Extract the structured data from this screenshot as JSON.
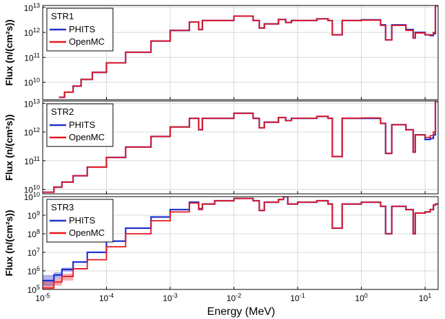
{
  "figure": {
    "xlabel": "Energy (MeV)",
    "colors": {
      "phits": "#1f2fd0",
      "openmc": "#e8141b",
      "grid": "#d8d8d8",
      "frame": "#000000"
    }
  },
  "chart_data": [
    {
      "type": "line",
      "panel_label": "STR1",
      "ylabel": "Flux (n/(cm²s))",
      "xscale": "log",
      "yscale": "log",
      "xlim": [
        1e-05,
        16
      ],
      "ylim": [
        2000000000.0,
        12000000000000.0
      ],
      "grid": true,
      "legend_position": "top-left",
      "x_ticks": [
        {
          "value": 1e-05,
          "base": "10",
          "exp": "-5"
        },
        {
          "value": 0.0001,
          "base": "10",
          "exp": "-4"
        },
        {
          "value": 0.001,
          "base": "10",
          "exp": "-3"
        },
        {
          "value": 0.01,
          "base": "10",
          "exp": "-2"
        },
        {
          "value": 0.1,
          "base": "10",
          "exp": "-1"
        },
        {
          "value": 1,
          "base": "10",
          "exp": "0"
        },
        {
          "value": 10,
          "base": "10",
          "exp": "1"
        }
      ],
      "y_ticks": [
        {
          "value": 10000000000.0,
          "base": "10",
          "exp": "10"
        },
        {
          "value": 100000000000.0,
          "base": "10",
          "exp": "11"
        },
        {
          "value": 1000000000000.0,
          "base": "10",
          "exp": "12"
        },
        {
          "value": 10000000000000.0,
          "base": "10",
          "exp": "13"
        }
      ],
      "series": [
        {
          "name": "PHITS",
          "color": "#1f2fd0",
          "x": [
            1.8e-05,
            2.2e-05,
            3e-05,
            4e-05,
            6e-05,
            0.0001,
            0.0002,
            0.0005,
            0.001,
            0.002,
            0.0028,
            0.0032,
            0.005,
            0.01,
            0.02,
            0.025,
            0.03,
            0.05,
            0.065,
            0.08,
            0.1,
            0.2,
            0.3,
            0.35,
            0.5,
            1,
            2,
            2.4,
            3,
            5,
            6.5,
            7,
            10,
            12,
            13.5,
            14.5
          ],
          "y": [
            2500000000.0,
            4000000000.0,
            7000000000.0,
            13000000000.0,
            25000000000.0,
            60000000000.0,
            160000000000.0,
            450000000000.0,
            1200000000000.0,
            2600000000000.0,
            1300000000000.0,
            3000000000000.0,
            3000000000000.0,
            4500000000000.0,
            3000000000000.0,
            1500000000000.0,
            2200000000000.0,
            3300000000000.0,
            2500000000000.0,
            3000000000000.0,
            3000000000000.0,
            3500000000000.0,
            3000000000000.0,
            800000000000.0,
            3000000000000.0,
            3200000000000.0,
            2000000000000.0,
            500000000000.0,
            2000000000000.0,
            1300000000000.0,
            600000000000.0,
            1000000000000.0,
            800000000000.0,
            750000000000.0,
            900000000000.0,
            12000000000000.0
          ]
        },
        {
          "name": "OpenMC",
          "color": "#e8141b",
          "x": [
            1.8e-05,
            2.2e-05,
            3e-05,
            4e-05,
            6e-05,
            0.0001,
            0.0002,
            0.0005,
            0.001,
            0.002,
            0.0028,
            0.0032,
            0.005,
            0.01,
            0.02,
            0.025,
            0.03,
            0.05,
            0.065,
            0.08,
            0.1,
            0.2,
            0.3,
            0.35,
            0.5,
            1,
            2,
            2.4,
            3,
            5,
            6.5,
            7,
            10,
            12,
            13.5,
            14.5
          ],
          "y": [
            2500000000.0,
            4000000000.0,
            7000000000.0,
            13000000000.0,
            25000000000.0,
            60000000000.0,
            160000000000.0,
            450000000000.0,
            1200000000000.0,
            2600000000000.0,
            1300000000000.0,
            3000000000000.0,
            3000000000000.0,
            4500000000000.0,
            3000000000000.0,
            1500000000000.0,
            2200000000000.0,
            3300000000000.0,
            2500000000000.0,
            3000000000000.0,
            3000000000000.0,
            3500000000000.0,
            3000000000000.0,
            800000000000.0,
            3000000000000.0,
            3100000000000.0,
            1900000000000.0,
            500000000000.0,
            1900000000000.0,
            1200000000000.0,
            600000000000.0,
            950000000000.0,
            800000000000.0,
            800000000000.0,
            1000000000000.0,
            12000000000000.0
          ]
        }
      ]
    },
    {
      "type": "line",
      "panel_label": "STR2",
      "ylabel": "Flux (n/(cm²s))",
      "xscale": "log",
      "yscale": "log",
      "xlim": [
        1e-05,
        16
      ],
      "ylim": [
        7000000000.0,
        12000000000000.0
      ],
      "grid": true,
      "legend_position": "top-left",
      "x_ticks": [
        {
          "value": 1e-05,
          "base": "10",
          "exp": "-5"
        },
        {
          "value": 0.0001,
          "base": "10",
          "exp": "-4"
        },
        {
          "value": 0.001,
          "base": "10",
          "exp": "-3"
        },
        {
          "value": 0.01,
          "base": "10",
          "exp": "-2"
        },
        {
          "value": 0.1,
          "base": "10",
          "exp": "-1"
        },
        {
          "value": 1,
          "base": "10",
          "exp": "0"
        },
        {
          "value": 10,
          "base": "10",
          "exp": "1"
        }
      ],
      "y_ticks": [
        {
          "value": 10000000000.0,
          "base": "10",
          "exp": "10"
        },
        {
          "value": 100000000000.0,
          "base": "10",
          "exp": "11"
        },
        {
          "value": 1000000000000.0,
          "base": "10",
          "exp": "12"
        },
        {
          "value": 10000000000000.0,
          "base": "10",
          "exp": "13"
        }
      ],
      "series": [
        {
          "name": "PHITS",
          "color": "#1f2fd0",
          "x": [
            1e-05,
            1.5e-05,
            2e-05,
            3e-05,
            5e-05,
            0.0001,
            0.0002,
            0.0005,
            0.001,
            0.002,
            0.0028,
            0.0032,
            0.005,
            0.01,
            0.02,
            0.025,
            0.03,
            0.05,
            0.065,
            0.08,
            0.1,
            0.2,
            0.3,
            0.35,
            0.5,
            1,
            2,
            2.4,
            3,
            5,
            6.5,
            7,
            10,
            12,
            13.5,
            14.5
          ],
          "y": [
            8000000000.0,
            12000000000.0,
            18000000000.0,
            30000000000.0,
            60000000000.0,
            130000000000.0,
            300000000000.0,
            700000000000.0,
            1500000000000.0,
            3000000000000.0,
            1200000000000.0,
            3000000000000.0,
            3000000000000.0,
            4500000000000.0,
            3000000000000.0,
            1400000000000.0,
            2200000000000.0,
            3200000000000.0,
            2500000000000.0,
            3000000000000.0,
            3000000000000.0,
            3500000000000.0,
            3000000000000.0,
            140000000000.0,
            3000000000000.0,
            3000000000000.0,
            2000000000000.0,
            180000000000.0,
            1800000000000.0,
            1200000000000.0,
            200000000000.0,
            800000000000.0,
            550000000000.0,
            600000000000.0,
            800000000000.0,
            12000000000000.0
          ]
        },
        {
          "name": "OpenMC",
          "color": "#e8141b",
          "x": [
            1e-05,
            1.5e-05,
            2e-05,
            3e-05,
            5e-05,
            0.0001,
            0.0002,
            0.0005,
            0.001,
            0.002,
            0.0028,
            0.0032,
            0.005,
            0.01,
            0.02,
            0.025,
            0.03,
            0.05,
            0.065,
            0.08,
            0.1,
            0.2,
            0.3,
            0.35,
            0.5,
            1,
            2,
            2.4,
            3,
            5,
            6.5,
            7,
            10,
            12,
            13.5,
            14.5
          ],
          "y": [
            8000000000.0,
            12000000000.0,
            18000000000.0,
            30000000000.0,
            60000000000.0,
            130000000000.0,
            300000000000.0,
            700000000000.0,
            1500000000000.0,
            3000000000000.0,
            1200000000000.0,
            3000000000000.0,
            3000000000000.0,
            4500000000000.0,
            3000000000000.0,
            1400000000000.0,
            2200000000000.0,
            3200000000000.0,
            2500000000000.0,
            3000000000000.0,
            3000000000000.0,
            3500000000000.0,
            3000000000000.0,
            140000000000.0,
            3000000000000.0,
            3100000000000.0,
            2000000000000.0,
            180000000000.0,
            1800000000000.0,
            1200000000000.0,
            200000000000.0,
            800000000000.0,
            650000000000.0,
            750000000000.0,
            1000000000000.0,
            12000000000000.0
          ]
        }
      ]
    },
    {
      "type": "line",
      "panel_label": "STR3",
      "ylabel": "Flux (n/(cm²s))",
      "xscale": "log",
      "yscale": "log",
      "xlim": [
        1e-05,
        16
      ],
      "ylim": [
        100000.0,
        10000000000.0
      ],
      "grid": true,
      "legend_position": "top-left",
      "x_ticks": [
        {
          "value": 1e-05,
          "base": "10",
          "exp": "-5"
        },
        {
          "value": 0.0001,
          "base": "10",
          "exp": "-4"
        },
        {
          "value": 0.001,
          "base": "10",
          "exp": "-3"
        },
        {
          "value": 0.01,
          "base": "10",
          "exp": "-2"
        },
        {
          "value": 0.1,
          "base": "10",
          "exp": "-1"
        },
        {
          "value": 1,
          "base": "10",
          "exp": "0"
        },
        {
          "value": 10,
          "base": "10",
          "exp": "1"
        }
      ],
      "y_ticks": [
        {
          "value": 100000.0,
          "base": "10",
          "exp": "5"
        },
        {
          "value": 1000000.0,
          "base": "10",
          "exp": "6"
        },
        {
          "value": 10000000.0,
          "base": "10",
          "exp": "7"
        },
        {
          "value": 100000000.0,
          "base": "10",
          "exp": "8"
        },
        {
          "value": 1000000000.0,
          "base": "10",
          "exp": "9"
        },
        {
          "value": 10000000000.0,
          "base": "10",
          "exp": "10"
        }
      ],
      "series": [
        {
          "name": "PHITS",
          "color": "#1f2fd0",
          "x": [
            1e-05,
            1.5e-05,
            2e-05,
            3e-05,
            5e-05,
            0.0001,
            0.0002,
            0.0005,
            0.001,
            0.002,
            0.0028,
            0.0032,
            0.005,
            0.01,
            0.02,
            0.025,
            0.03,
            0.05,
            0.06,
            0.07,
            0.1,
            0.2,
            0.3,
            0.35,
            0.5,
            1,
            2,
            2.4,
            3,
            5,
            6.5,
            7,
            10,
            12,
            13.5,
            14.5
          ],
          "y": [
            300000.0,
            600000.0,
            1200000.0,
            3000000.0,
            10000000.0,
            40000000.0,
            200000000.0,
            800000000.0,
            2000000000.0,
            5000000000.0,
            2200000000.0,
            4000000000.0,
            6000000000.0,
            8000000000.0,
            6000000000.0,
            1800000000.0,
            5000000000.0,
            7000000000.0,
            10000000000.0,
            4000000000.0,
            5000000000.0,
            6000000000.0,
            4000000000.0,
            200000000.0,
            4000000000.0,
            5000000000.0,
            3000000000.0,
            100000000.0,
            3000000000.0,
            2000000000.0,
            100000000.0,
            1300000000.0,
            1500000000.0,
            2000000000.0,
            3500000000.0,
            4000000000.0
          ],
          "band_lo": [
            150000.0,
            400000.0,
            900000.0
          ],
          "band_hi": [
            600000.0,
            850000.0,
            1500000.0
          ]
        },
        {
          "name": "OpenMC",
          "color": "#e8141b",
          "x": [
            1e-05,
            1.5e-05,
            2e-05,
            3e-05,
            5e-05,
            0.0001,
            0.0002,
            0.0005,
            0.001,
            0.002,
            0.0028,
            0.0032,
            0.005,
            0.01,
            0.02,
            0.025,
            0.03,
            0.05,
            0.06,
            0.07,
            0.1,
            0.2,
            0.3,
            0.35,
            0.5,
            1,
            2,
            2.4,
            3,
            5,
            6.5,
            7,
            10,
            12,
            13.5,
            14.5
          ],
          "y": [
            120000.0,
            250000.0,
            500000.0,
            1300000.0,
            4000000.0,
            20000000.0,
            100000000.0,
            500000000.0,
            1500000000.0,
            4500000000.0,
            2000000000.0,
            4000000000.0,
            6000000000.0,
            8000000000.0,
            6000000000.0,
            1800000000.0,
            5000000000.0,
            7000000000.0,
            10000000000.0,
            4000000000.0,
            5000000000.0,
            6000000000.0,
            4000000000.0,
            200000000.0,
            4000000000.0,
            5000000000.0,
            3000000000.0,
            100000000.0,
            3000000000.0,
            2000000000.0,
            100000000.0,
            1300000000.0,
            1500000000.0,
            2000000000.0,
            3500000000.0,
            4000000000.0
          ],
          "band_lo": [
            100000.0,
            160000.0,
            300000.0
          ],
          "band_hi": [
            300000.0,
            400000.0,
            700000.0
          ]
        }
      ]
    }
  ]
}
